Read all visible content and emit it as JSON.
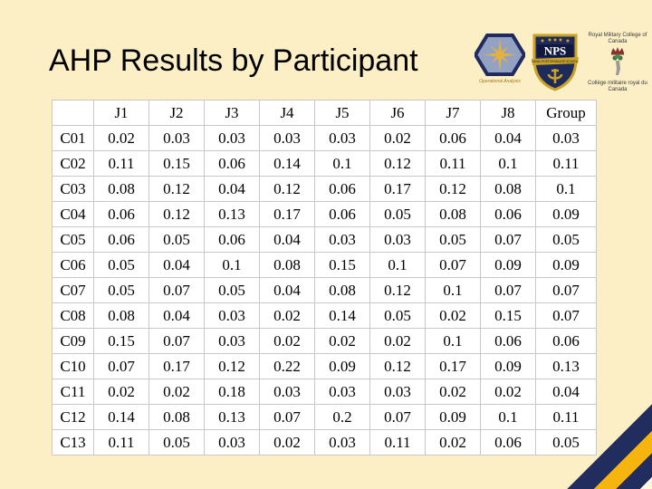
{
  "slide": {
    "title": "AHP Results by Participant",
    "background_color": "#FCEEC5",
    "accent_navy": "#212C5F",
    "accent_gold": "#F6B40E"
  },
  "logos": {
    "operational_analysis": {
      "caption": "Operational Analysis"
    },
    "nps": {
      "shield_label": "NPS",
      "banner": "NAVAL POSTGRADUATE SCHOOL"
    },
    "rmc": {
      "top_text": "Royal Military College of Canada",
      "bottom_text": "Collège militaire royal du Canada"
    }
  },
  "table": {
    "columns": [
      "",
      "J1",
      "J2",
      "J3",
      "J4",
      "J5",
      "J6",
      "J7",
      "J8",
      "Group"
    ],
    "rows": [
      {
        "label": "C01",
        "values": [
          "0.02",
          "0.03",
          "0.03",
          "0.03",
          "0.03",
          "0.02",
          "0.06",
          "0.04",
          "0.03"
        ]
      },
      {
        "label": "C02",
        "values": [
          "0.11",
          "0.15",
          "0.06",
          "0.14",
          "0.1",
          "0.12",
          "0.11",
          "0.1",
          "0.11"
        ]
      },
      {
        "label": "C03",
        "values": [
          "0.08",
          "0.12",
          "0.04",
          "0.12",
          "0.06",
          "0.17",
          "0.12",
          "0.08",
          "0.1"
        ]
      },
      {
        "label": "C04",
        "values": [
          "0.06",
          "0.12",
          "0.13",
          "0.17",
          "0.06",
          "0.05",
          "0.08",
          "0.06",
          "0.09"
        ]
      },
      {
        "label": "C05",
        "values": [
          "0.06",
          "0.05",
          "0.06",
          "0.04",
          "0.03",
          "0.03",
          "0.05",
          "0.07",
          "0.05"
        ]
      },
      {
        "label": "C06",
        "values": [
          "0.05",
          "0.04",
          "0.1",
          "0.08",
          "0.15",
          "0.1",
          "0.07",
          "0.09",
          "0.09"
        ]
      },
      {
        "label": "C07",
        "values": [
          "0.05",
          "0.07",
          "0.05",
          "0.04",
          "0.08",
          "0.12",
          "0.1",
          "0.07",
          "0.07"
        ]
      },
      {
        "label": "C08",
        "values": [
          "0.08",
          "0.04",
          "0.03",
          "0.02",
          "0.14",
          "0.05",
          "0.02",
          "0.15",
          "0.07"
        ]
      },
      {
        "label": "C09",
        "values": [
          "0.15",
          "0.07",
          "0.03",
          "0.02",
          "0.02",
          "0.02",
          "0.1",
          "0.06",
          "0.06"
        ]
      },
      {
        "label": "C10",
        "values": [
          "0.07",
          "0.17",
          "0.12",
          "0.22",
          "0.09",
          "0.12",
          "0.17",
          "0.09",
          "0.13"
        ]
      },
      {
        "label": "C11",
        "values": [
          "0.02",
          "0.02",
          "0.18",
          "0.03",
          "0.03",
          "0.03",
          "0.02",
          "0.02",
          "0.04"
        ]
      },
      {
        "label": "C12",
        "values": [
          "0.14",
          "0.08",
          "0.13",
          "0.07",
          "0.2",
          "0.07",
          "0.09",
          "0.1",
          "0.11"
        ]
      },
      {
        "label": "C13",
        "values": [
          "0.11",
          "0.05",
          "0.03",
          "0.02",
          "0.03",
          "0.11",
          "0.02",
          "0.06",
          "0.05"
        ]
      }
    ]
  }
}
